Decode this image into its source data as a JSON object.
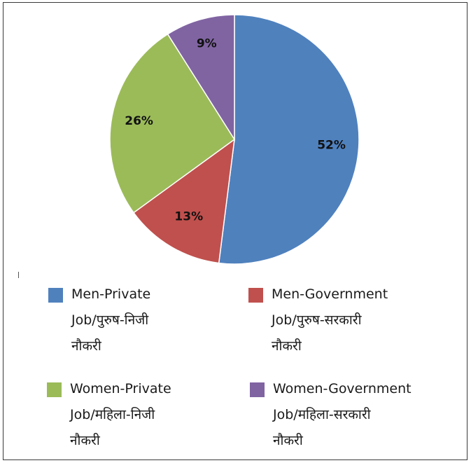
{
  "chart_data": {
    "type": "pie",
    "title": "",
    "legend_position": "bottom",
    "slices": [
      {
        "label": "Men-Private Job/पुरुष-निजी नौकरी",
        "value": 52,
        "value_label": "52%",
        "color": "#4f81bd"
      },
      {
        "label": "Men-Government Job/पुरुष-सरकारी नौकरी",
        "value": 13,
        "value_label": "13%",
        "color": "#c0504d"
      },
      {
        "label": "Women-Private Job/महिला-निजी नौकरी",
        "value": 26,
        "value_label": "26%",
        "color": "#9bbb59"
      },
      {
        "label": "Women-Government Job/महिला-सरकारी नौकरी",
        "value": 9,
        "value_label": "9%",
        "color": "#8064a2"
      }
    ]
  },
  "legend": [
    {
      "text": "Men-Private\nJob/पुरुष-निजी\nनौकरी",
      "color": "#4f81bd"
    },
    {
      "text": "Men-Government\nJob/पुरुष-सरकारी\nनौकरी",
      "color": "#c0504d"
    },
    {
      "text": "Women-Private\nJob/महिला-निजी\nनौकरी",
      "color": "#9bbb59"
    },
    {
      "text": "Women-Government\nJob/महिला-सरकारी\nनौकरी",
      "color": "#8064a2"
    }
  ]
}
